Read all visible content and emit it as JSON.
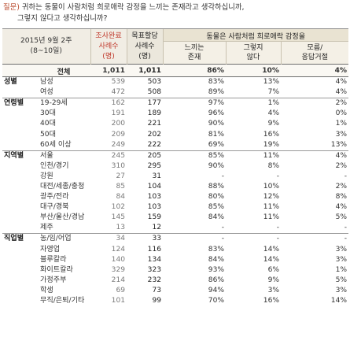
{
  "question": {
    "label": "질문)",
    "line1": "귀하는 동물이 사람처럼 희로애락 감정을 느끼는 존재라고 생각하십니까,",
    "line2": "그렇지 않다고 생각하십니까?"
  },
  "header": {
    "period_line1": "2015년 9월 2주",
    "period_line2": "(8~10일)",
    "sample_line1": "조사완료",
    "sample_line2": "사례수",
    "sample_line3": "(명)",
    "target_line1": "목표할당",
    "target_line2": "사례수",
    "target_line3": "(명)",
    "opinion_title": "동물은 사람처럼 희로애락 감정을",
    "opt1_line1": "느끼는",
    "opt1_line2": "존재",
    "opt2_line1": "그렇지",
    "opt2_line2": "않다",
    "opt3_line1": "모름/",
    "opt3_line2": "응답거절"
  },
  "total": {
    "label": "전체",
    "n1": "1,011",
    "n2": "1,011",
    "p1": "86%",
    "p2": "10%",
    "p3": "4%"
  },
  "rows": [
    {
      "group": "성별",
      "sub": "남성",
      "n1": "539",
      "n2": "503",
      "p1": "83%",
      "p2": "13%",
      "p3": "4%"
    },
    {
      "group": "",
      "sub": "여성",
      "n1": "472",
      "n2": "508",
      "p1": "89%",
      "p2": "7%",
      "p3": "4%"
    },
    {
      "group": "연령별",
      "sub": "19-29세",
      "n1": "162",
      "n2": "177",
      "p1": "97%",
      "p2": "1%",
      "p3": "2%"
    },
    {
      "group": "",
      "sub": "30대",
      "n1": "191",
      "n2": "189",
      "p1": "96%",
      "p2": "4%",
      "p3": "0%"
    },
    {
      "group": "",
      "sub": "40대",
      "n1": "200",
      "n2": "221",
      "p1": "90%",
      "p2": "9%",
      "p3": "1%"
    },
    {
      "group": "",
      "sub": "50대",
      "n1": "209",
      "n2": "202",
      "p1": "81%",
      "p2": "16%",
      "p3": "3%"
    },
    {
      "group": "",
      "sub": "60세 이상",
      "n1": "249",
      "n2": "222",
      "p1": "69%",
      "p2": "19%",
      "p3": "13%"
    },
    {
      "group": "지역별",
      "sub": "서울",
      "n1": "245",
      "n2": "205",
      "p1": "85%",
      "p2": "11%",
      "p3": "4%"
    },
    {
      "group": "",
      "sub": "인천/경기",
      "n1": "310",
      "n2": "295",
      "p1": "90%",
      "p2": "8%",
      "p3": "2%"
    },
    {
      "group": "",
      "sub": "강원",
      "n1": "27",
      "n2": "31",
      "p1": "-",
      "p2": "-",
      "p3": "-"
    },
    {
      "group": "",
      "sub": "대전/세종/충청",
      "n1": "85",
      "n2": "104",
      "p1": "88%",
      "p2": "10%",
      "p3": "2%"
    },
    {
      "group": "",
      "sub": "광주/전라",
      "n1": "84",
      "n2": "103",
      "p1": "80%",
      "p2": "12%",
      "p3": "8%"
    },
    {
      "group": "",
      "sub": "대구/경북",
      "n1": "102",
      "n2": "103",
      "p1": "85%",
      "p2": "11%",
      "p3": "4%"
    },
    {
      "group": "",
      "sub": "부산/울산/경남",
      "n1": "145",
      "n2": "159",
      "p1": "84%",
      "p2": "11%",
      "p3": "5%"
    },
    {
      "group": "",
      "sub": "제주",
      "n1": "13",
      "n2": "12",
      "p1": "-",
      "p2": "-",
      "p3": "-"
    },
    {
      "group": "직업별",
      "sub": "농/임/어업",
      "n1": "34",
      "n2": "33",
      "p1": "-",
      "p2": "-",
      "p3": "-"
    },
    {
      "group": "",
      "sub": "자영업",
      "n1": "124",
      "n2": "116",
      "p1": "83%",
      "p2": "14%",
      "p3": "3%"
    },
    {
      "group": "",
      "sub": "블루칼라",
      "n1": "140",
      "n2": "134",
      "p1": "84%",
      "p2": "14%",
      "p3": "3%"
    },
    {
      "group": "",
      "sub": "화이트칼라",
      "n1": "329",
      "n2": "323",
      "p1": "93%",
      "p2": "6%",
      "p3": "1%"
    },
    {
      "group": "",
      "sub": "가정주부",
      "n1": "214",
      "n2": "232",
      "p1": "86%",
      "p2": "9%",
      "p3": "5%"
    },
    {
      "group": "",
      "sub": "학생",
      "n1": "69",
      "n2": "73",
      "p1": "94%",
      "p2": "3%",
      "p3": "3%"
    },
    {
      "group": "",
      "sub": "무직/은퇴/기타",
      "n1": "101",
      "n2": "99",
      "p1": "70%",
      "p2": "16%",
      "p3": "14%"
    }
  ]
}
